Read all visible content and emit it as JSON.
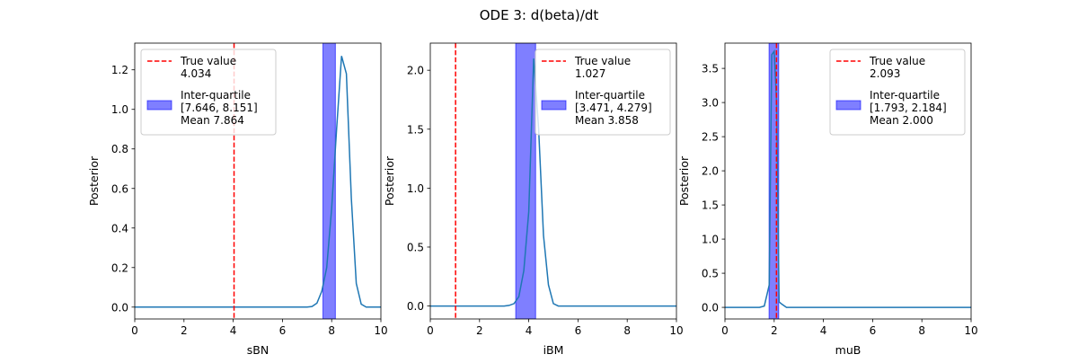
{
  "figure": {
    "title": "ODE 3: d(beta)/dt"
  },
  "chart_data": [
    {
      "type": "line",
      "xlabel": "sBN",
      "ylabel": "Posterior",
      "xlim": [
        0,
        10
      ],
      "ylim": [
        -0.06,
        1.335
      ],
      "xticks": [
        "0",
        "2",
        "4",
        "6",
        "8",
        "10"
      ],
      "yticks": [
        "0.0",
        "0.2",
        "0.4",
        "0.6",
        "0.8",
        "1.0",
        "1.2"
      ],
      "ytick_values": [
        0,
        0.2,
        0.4,
        0.6,
        0.8,
        1.0,
        1.2
      ],
      "true_value": 4.034,
      "iqr": [
        7.646,
        8.151
      ],
      "legend": {
        "position": "upper left",
        "true_label": "True value",
        "true_value_text": "4.034",
        "iqr_label": "Inter-quartile",
        "iqr_text": "[7.646, 8.151]",
        "mean_text": "Mean 7.864"
      },
      "x": [
        0,
        7.0,
        7.2,
        7.4,
        7.6,
        7.8,
        8.0,
        8.2,
        8.4,
        8.6,
        8.8,
        9.0,
        9.2,
        9.4,
        10
      ],
      "y": [
        0,
        0,
        0.003,
        0.02,
        0.08,
        0.2,
        0.5,
        0.9,
        1.27,
        1.18,
        0.55,
        0.12,
        0.015,
        0,
        0
      ],
      "colors": {
        "line": "#1f77b4",
        "true": "#ff0000",
        "iqr": "#0000ff"
      }
    },
    {
      "type": "line",
      "xlabel": "iBM",
      "ylabel": "Posterior",
      "xlim": [
        0,
        10
      ],
      "ylim": [
        -0.11,
        2.23
      ],
      "xticks": [
        "0",
        "2",
        "4",
        "6",
        "8",
        "10"
      ],
      "yticks": [
        "0.0",
        "0.5",
        "1.0",
        "1.5",
        "2.0"
      ],
      "ytick_values": [
        0,
        0.5,
        1.0,
        1.5,
        2.0
      ],
      "true_value": 1.027,
      "iqr": [
        3.471,
        4.279
      ],
      "legend": {
        "position": "upper right",
        "true_label": "True value",
        "true_value_text": "1.027",
        "iqr_label": "Inter-quartile",
        "iqr_text": "[3.471, 4.279]",
        "mean_text": "Mean 3.858"
      },
      "x": [
        0,
        3.0,
        3.2,
        3.4,
        3.6,
        3.8,
        4.0,
        4.2,
        4.4,
        4.6,
        4.8,
        5.0,
        5.2,
        10
      ],
      "y": [
        0,
        0,
        0.005,
        0.02,
        0.08,
        0.3,
        0.8,
        2.1,
        1.5,
        0.6,
        0.18,
        0.02,
        0,
        0
      ],
      "colors": {
        "line": "#1f77b4",
        "true": "#ff0000",
        "iqr": "#0000ff"
      }
    },
    {
      "type": "line",
      "xlabel": "muB",
      "ylabel": "Posterior",
      "xlim": [
        0,
        10
      ],
      "ylim": [
        -0.17,
        3.87
      ],
      "xticks": [
        "0",
        "2",
        "4",
        "6",
        "8",
        "10"
      ],
      "yticks": [
        "0.0",
        "0.5",
        "1.0",
        "1.5",
        "2.0",
        "2.5",
        "3.0",
        "3.5"
      ],
      "ytick_values": [
        0,
        0.5,
        1.0,
        1.5,
        2.0,
        2.5,
        3.0,
        3.5
      ],
      "true_value": 2.093,
      "iqr": [
        1.793,
        2.184
      ],
      "legend": {
        "position": "upper right",
        "true_label": "True value",
        "true_value_text": "2.093",
        "iqr_label": "Inter-quartile",
        "iqr_text": "[1.793, 2.184]",
        "mean_text": "Mean 2.000"
      },
      "x": [
        0,
        1.4,
        1.6,
        1.8,
        1.9,
        2.0,
        2.1,
        2.2,
        2.3,
        2.5,
        10
      ],
      "y": [
        0,
        0,
        0.02,
        0.33,
        3.7,
        3.75,
        3.0,
        0.08,
        0.05,
        0,
        0
      ],
      "colors": {
        "line": "#1f77b4",
        "true": "#ff0000",
        "iqr": "#0000ff"
      }
    }
  ]
}
